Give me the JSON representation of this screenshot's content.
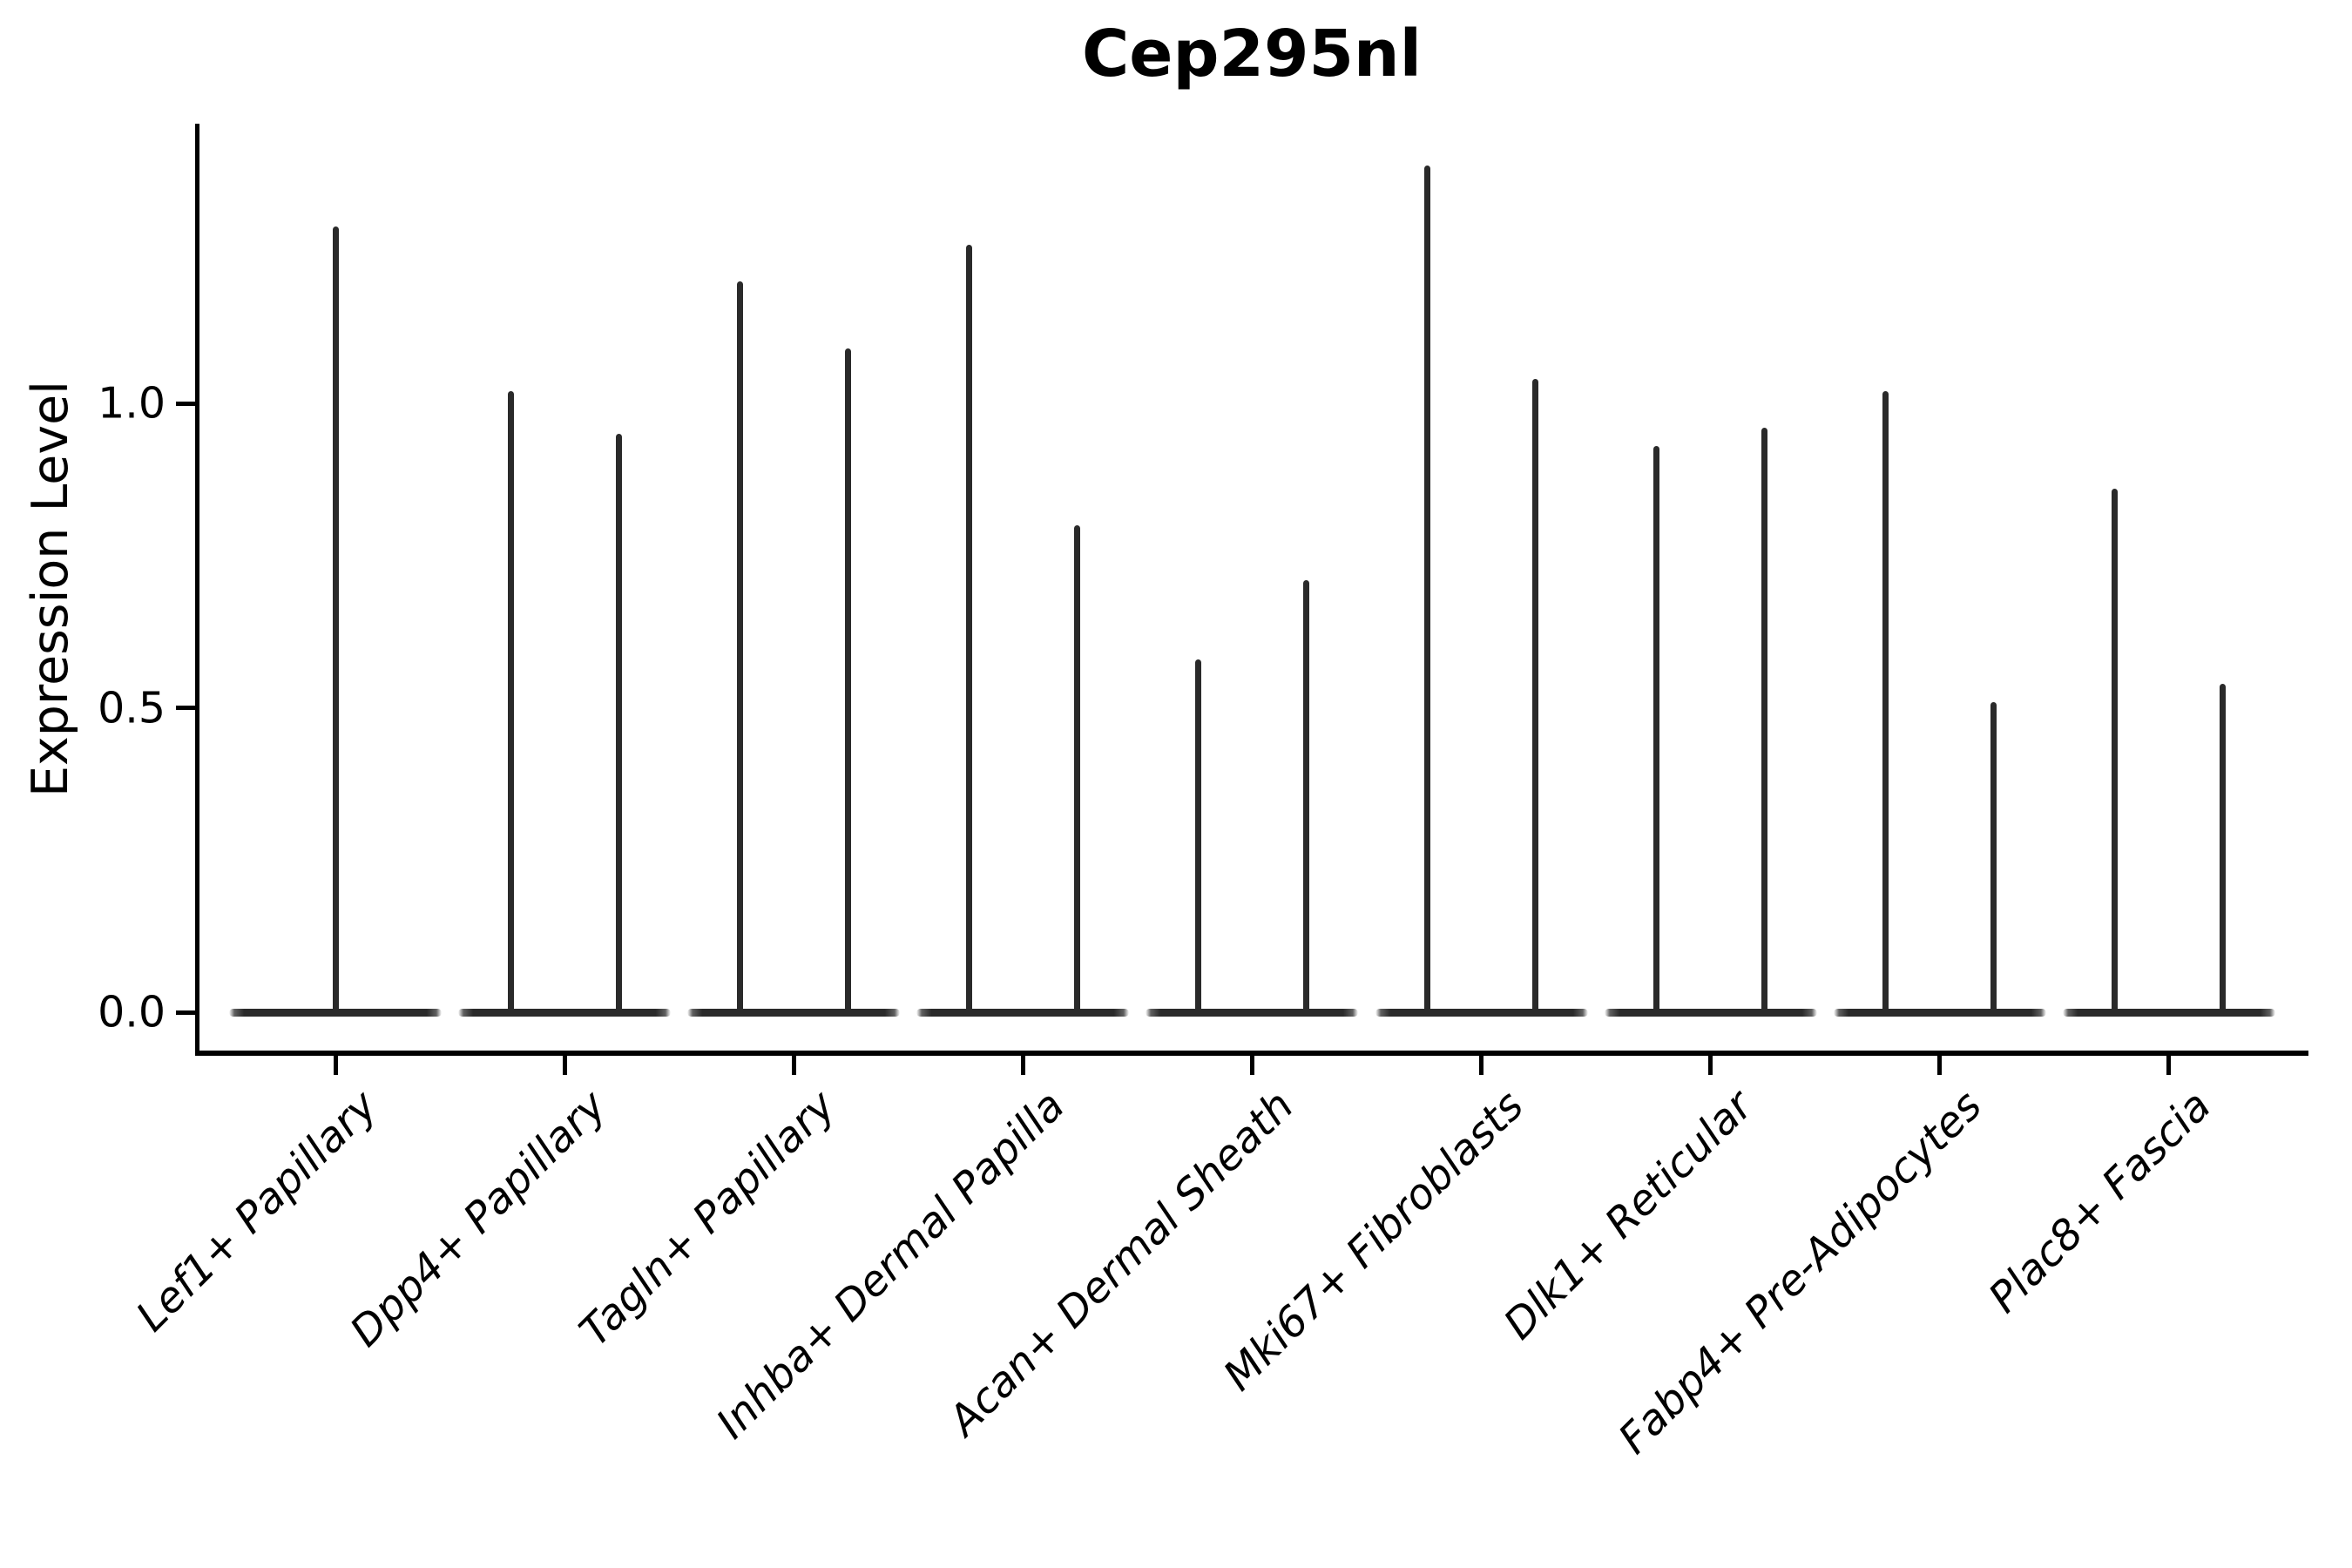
{
  "chart_data": {
    "type": "violin",
    "title": "Cep295nl",
    "ylabel": "Expression Level",
    "xlabel": "",
    "ylim": [
      -0.07,
      1.46
    ],
    "yticks": [
      0.0,
      0.5,
      1.0
    ],
    "ytick_labels": [
      "0.0",
      "0.5",
      "1.0"
    ],
    "grid": false,
    "legend": null,
    "violin_style": "violins collapsed to a flat baseline at expression 0 with thin density spikes rising to the maximum expression value; two half-width violins per category except the first which has one full-width violin",
    "categories": [
      {
        "label": "Lef1+ Papillary",
        "spike_maxima": [
          1.29
        ]
      },
      {
        "label": "Dpp4+ Papillary",
        "spike_maxima": [
          1.02,
          0.95
        ]
      },
      {
        "label": "Tagln+ Papillary",
        "spike_maxima": [
          1.2,
          1.09
        ]
      },
      {
        "label": "Inhba+ Dermal Papilla",
        "spike_maxima": [
          1.26,
          0.8
        ]
      },
      {
        "label": "Acan+ Dermal Sheath",
        "spike_maxima": [
          0.58,
          0.71
        ]
      },
      {
        "label": "Mki67+ Fibroblasts",
        "spike_maxima": [
          1.39,
          1.04
        ]
      },
      {
        "label": "Dlk1+ Reticular",
        "spike_maxima": [
          0.93,
          0.96
        ]
      },
      {
        "label": "Fabp4+ Pre-Adipocytes",
        "spike_maxima": [
          1.02,
          0.51
        ]
      },
      {
        "label": "Plac8+ Fascia",
        "spike_maxima": [
          0.86,
          0.54
        ]
      }
    ],
    "colors": {
      "violin": "#2a2a2a",
      "axis": "#000000",
      "text": "#000000",
      "background": "#ffffff"
    }
  }
}
